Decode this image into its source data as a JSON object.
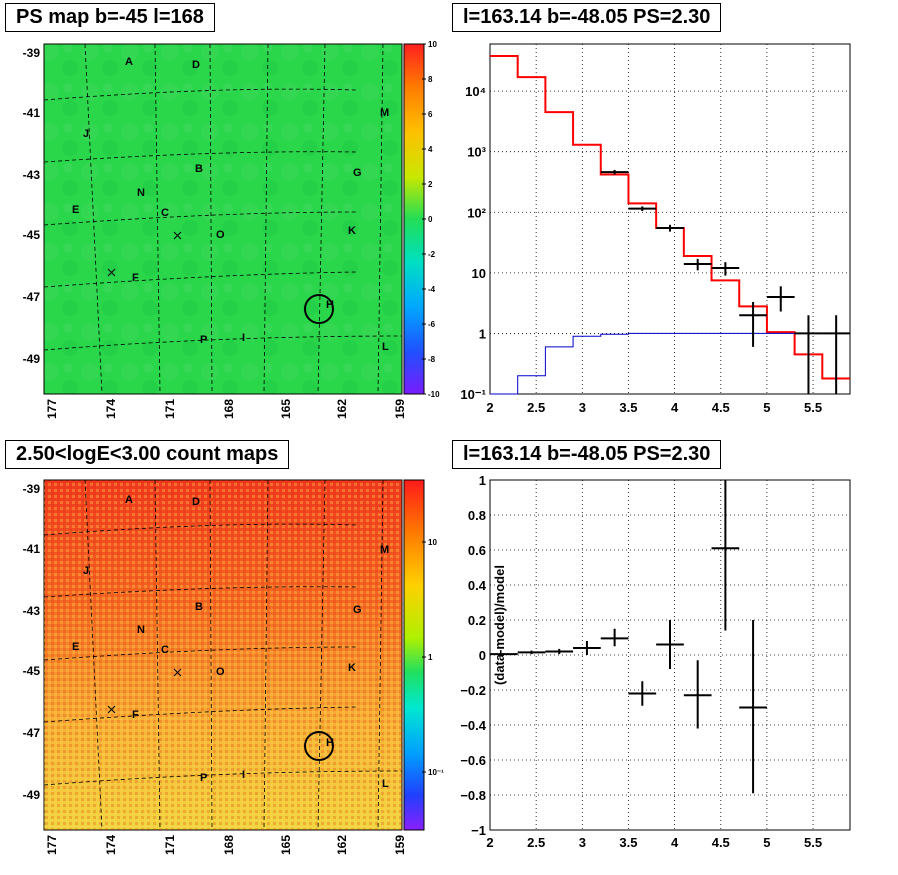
{
  "colors": {
    "map_bg": "#2bd44a",
    "model_line": "#ff0000",
    "bg_line": "#0000cc",
    "data_marker": "#000000"
  },
  "panels": {
    "ps_map": {
      "title": "PS map b=-45 l=168",
      "x_ticks": [
        "177",
        "174",
        "171",
        "168",
        "165",
        "162",
        "159"
      ],
      "y_ticks": [
        "-39",
        "-41",
        "-43",
        "-45",
        "-47",
        "-49"
      ],
      "colorbar_ticks": [
        "10",
        "8",
        "6",
        "4",
        "2",
        "0",
        "-2",
        "-4",
        "-6",
        "-8",
        "-10"
      ],
      "labels": [
        "A",
        "D",
        "M",
        "J",
        "B",
        "G",
        "N",
        "E",
        "C",
        "K",
        "O",
        "F",
        "H",
        "P",
        "I",
        "L"
      ]
    },
    "count_map": {
      "title": "2.50<logE<3.00 count maps",
      "x_ticks": [
        "177",
        "174",
        "171",
        "168",
        "165",
        "162",
        "159"
      ],
      "y_ticks": [
        "-39",
        "-41",
        "-43",
        "-45",
        "-47",
        "-49"
      ],
      "colorbar_ticks": [
        "10",
        "1",
        "10⁻¹"
      ],
      "labels": [
        "A",
        "D",
        "M",
        "J",
        "B",
        "G",
        "N",
        "E",
        "C",
        "K",
        "O",
        "F",
        "H",
        "P",
        "I",
        "L"
      ]
    },
    "spectrum": {
      "title": "l=163.14 b=-48.05 PS=2.30",
      "x_ticks": [
        "2",
        "2.5",
        "3",
        "3.5",
        "4",
        "4.5",
        "5",
        "5.5"
      ],
      "y_ticks": [
        "10⁻¹",
        "1",
        "10",
        "10²",
        "10³",
        "10⁴"
      ]
    },
    "residual": {
      "title": "l=163.14 b=-48.05 PS=2.30",
      "ylabel": "(data-model)/model",
      "x_ticks": [
        "2",
        "2.5",
        "3",
        "3.5",
        "4",
        "4.5",
        "5",
        "5.5"
      ],
      "y_ticks": [
        "1",
        "0.8",
        "0.6",
        "0.4",
        "0.2",
        "0",
        "−0.2",
        "−0.4",
        "−0.6",
        "−0.8",
        "−1"
      ]
    }
  },
  "chart_data": [
    {
      "type": "heatmap",
      "title": "PS map b=-45 l=168",
      "xlim": [
        177,
        159
      ],
      "ylim": [
        -39,
        -50
      ],
      "colorbar_range": [
        -10,
        10
      ],
      "description_value": "mostly near 0 (green)",
      "grid": true
    },
    {
      "type": "heatmap",
      "title": "2.50<logE<3.00 count maps",
      "xlim": [
        177,
        159
      ],
      "ylim": [
        -39,
        -50
      ],
      "colorbar_scale": "log",
      "grid": true
    },
    {
      "type": "line",
      "title": "l=163.14 b=-48.05 PS=2.30",
      "yscale": "log",
      "xlim": [
        2,
        5.9
      ],
      "ylim": [
        0.1,
        60000
      ],
      "grid": true,
      "series": [
        {
          "name": "",
          "kind": "step",
          "color": "#ff0000",
          "edges": [
            2.0,
            2.3,
            2.6,
            2.9,
            3.2,
            3.5,
            3.8,
            4.1,
            4.4,
            4.7,
            5.0,
            5.3,
            5.6,
            5.9
          ],
          "values": [
            38000,
            17000,
            4500,
            1300,
            420,
            140,
            55,
            19,
            7.5,
            2.8,
            1.05,
            0.45,
            0.18
          ]
        },
        {
          "name": "",
          "kind": "step",
          "color": "#0000cc",
          "edges": [
            2.0,
            2.3,
            2.6,
            2.9,
            3.2,
            3.5,
            3.8,
            4.1,
            4.4,
            4.7,
            5.0,
            5.3,
            5.6,
            5.9
          ],
          "values": [
            0.1,
            0.2,
            0.6,
            0.9,
            0.97,
            1.0,
            1.0,
            1.0,
            1.0,
            1.0,
            1.0,
            1.0,
            1.0
          ]
        },
        {
          "name": "",
          "kind": "points",
          "color": "#000000",
          "x": [
            3.35,
            3.65,
            3.95,
            4.25,
            4.55,
            4.85,
            5.15,
            5.45,
            5.75
          ],
          "xerr": [
            0.15,
            0.15,
            0.15,
            0.15,
            0.15,
            0.15,
            0.15,
            0.15,
            0.15
          ],
          "y": [
            460,
            115,
            55,
            14,
            12,
            2,
            4,
            1,
            1
          ],
          "ylo": [
            420,
            105,
            48,
            11,
            9,
            0.6,
            2.3,
            0.1,
            0.1
          ],
          "yhi": [
            500,
            125,
            62,
            17,
            15,
            3.3,
            6,
            2,
            2
          ]
        }
      ]
    },
    {
      "type": "scatter",
      "title": "l=163.14 b=-48.05 PS=2.30",
      "ylabel": "(data-model)/model",
      "xlim": [
        2,
        5.9
      ],
      "ylim": [
        -1,
        1
      ],
      "grid": true,
      "series": [
        {
          "name": "",
          "x": [
            2.15,
            2.45,
            2.75,
            3.05,
            3.35,
            3.65,
            3.95,
            4.25,
            4.55,
            4.85
          ],
          "xerr": [
            0.15,
            0.15,
            0.15,
            0.15,
            0.15,
            0.15,
            0.15,
            0.15,
            0.15,
            0.15
          ],
          "y": [
            0.005,
            0.015,
            0.02,
            0.04,
            0.095,
            -0.22,
            0.06,
            -0.23,
            0.61,
            -0.3
          ],
          "ylo": [
            0.0,
            0.005,
            0.005,
            0.0,
            0.05,
            -0.29,
            -0.08,
            -0.42,
            0.14,
            -0.79
          ],
          "yhi": [
            0.01,
            0.025,
            0.035,
            0.08,
            0.15,
            -0.15,
            0.2,
            -0.03,
            1.0,
            0.2
          ]
        }
      ]
    }
  ]
}
